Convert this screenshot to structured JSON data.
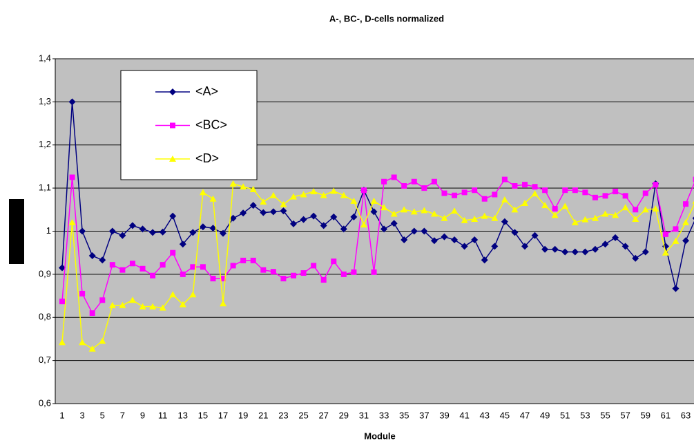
{
  "chart_data": {
    "type": "line",
    "title": "A-, BC-, D-cells normalized",
    "x_label": "Module",
    "categories": [
      1,
      null,
      3,
      null,
      5,
      null,
      7,
      null,
      9,
      null,
      11,
      null,
      13,
      null,
      15,
      null,
      17,
      null,
      19,
      null,
      21,
      null,
      23,
      null,
      25,
      null,
      27,
      null,
      29,
      null,
      31,
      null,
      33,
      null,
      35,
      null,
      37,
      null,
      39,
      null,
      41,
      null,
      43,
      null,
      45,
      null,
      47,
      null,
      49,
      null,
      51,
      null,
      53,
      null,
      55,
      null,
      57,
      null,
      59,
      null,
      61,
      null,
      63,
      null
    ],
    "ylim": [
      0.6,
      1.4
    ],
    "yticks": [
      {
        "value": 0.6,
        "label": "0,6"
      },
      {
        "value": 0.7,
        "label": "0,7"
      },
      {
        "value": 0.8,
        "label": "0,8"
      },
      {
        "value": 0.9,
        "label": "0,9"
      },
      1,
      {
        "value": 1.1,
        "label": "1,1"
      },
      {
        "value": 1.2,
        "label": "1,2"
      },
      {
        "value": 1.3,
        "label": "1,3"
      },
      {
        "value": 1.4,
        "label": "1,4"
      }
    ],
    "grid": true,
    "legend": "upper left",
    "series": [
      {
        "name": "<A>",
        "color": "#000080",
        "marker": "diamond",
        "values": [
          0.915,
          1.3,
          1.0,
          0.943,
          0.933,
          1.0,
          0.99,
          1.013,
          1.005,
          0.997,
          0.998,
          1.035,
          0.97,
          0.997,
          1.01,
          1.007,
          0.995,
          1.03,
          1.042,
          1.06,
          1.043,
          1.045,
          1.047,
          1.017,
          1.027,
          1.035,
          1.013,
          1.033,
          1.005,
          1.033,
          1.095,
          1.045,
          1.005,
          1.018,
          0.98,
          1.0,
          1.0,
          0.978,
          0.987,
          0.98,
          0.965,
          0.98,
          0.933,
          0.965,
          1.022,
          0.997,
          0.965,
          0.99,
          0.958,
          0.958,
          0.952,
          0.952,
          0.952,
          0.958,
          0.97,
          0.985,
          0.965,
          0.937,
          0.952,
          1.11,
          0.965,
          0.867,
          0.978,
          1.03
        ]
      },
      {
        "name": "<BC>",
        "color": "#ff00ff",
        "marker": "square",
        "values": [
          0.837,
          1.125,
          0.855,
          0.81,
          0.84,
          0.922,
          0.91,
          0.925,
          0.913,
          0.897,
          0.922,
          0.95,
          0.9,
          0.917,
          0.917,
          0.89,
          0.89,
          0.92,
          0.932,
          0.932,
          0.91,
          0.906,
          0.89,
          0.897,
          0.903,
          0.92,
          0.887,
          0.93,
          0.9,
          0.905,
          1.095,
          0.905,
          1.115,
          1.125,
          1.105,
          1.115,
          1.1,
          1.115,
          1.088,
          1.083,
          1.09,
          1.095,
          1.075,
          1.085,
          1.12,
          1.105,
          1.108,
          1.103,
          1.095,
          1.052,
          1.095,
          1.095,
          1.09,
          1.078,
          1.082,
          1.092,
          1.082,
          1.05,
          1.088,
          1.108,
          0.993,
          1.005,
          1.063,
          1.12
        ]
      },
      {
        "name": "<D>",
        "color": "#ffff00",
        "marker": "triangle",
        "values": [
          0.742,
          1.02,
          0.742,
          0.727,
          0.745,
          0.828,
          0.828,
          0.84,
          0.825,
          0.825,
          0.822,
          0.853,
          0.83,
          0.853,
          1.09,
          1.075,
          0.832,
          1.11,
          1.103,
          1.097,
          1.068,
          1.083,
          1.062,
          1.08,
          1.085,
          1.092,
          1.083,
          1.093,
          1.083,
          1.07,
          1.015,
          1.07,
          1.055,
          1.04,
          1.05,
          1.045,
          1.048,
          1.04,
          1.03,
          1.047,
          1.025,
          1.028,
          1.035,
          1.03,
          1.073,
          1.05,
          1.065,
          1.087,
          1.06,
          1.037,
          1.058,
          1.02,
          1.027,
          1.03,
          1.04,
          1.037,
          1.055,
          1.028,
          1.05,
          1.052,
          0.95,
          0.977,
          1.02,
          1.07
        ]
      }
    ]
  }
}
